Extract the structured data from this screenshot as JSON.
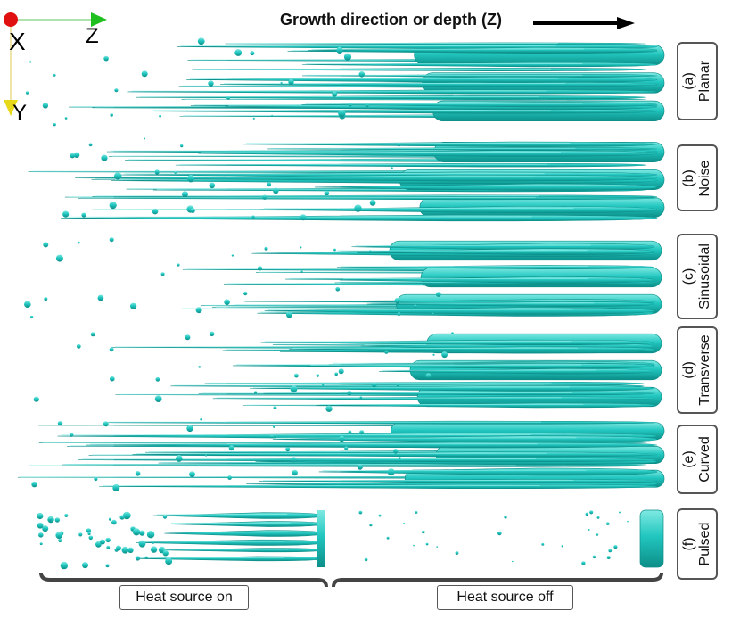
{
  "title": "Growth direction or depth (Z)",
  "axes": {
    "x_label": "X",
    "y_label": "Y",
    "z_label": "Z"
  },
  "colors": {
    "dendrite": "#22c7c0",
    "dendrite_dark": "#0e8f8a",
    "highlight": "#8ff0ea",
    "bracket": "#444444"
  },
  "panels": [
    {
      "letter": "(a)",
      "name": "Planar"
    },
    {
      "letter": "(b)",
      "name": "Noise"
    },
    {
      "letter": "(c)",
      "name": "Sinusoidal"
    },
    {
      "letter": "(d)",
      "name": "Transverse"
    },
    {
      "letter": "(e)",
      "name": "Curved"
    },
    {
      "letter": "(f)",
      "name": "Pulsed"
    }
  ],
  "bottom": {
    "on_label": "Heat source on",
    "off_label": "Heat source off"
  }
}
